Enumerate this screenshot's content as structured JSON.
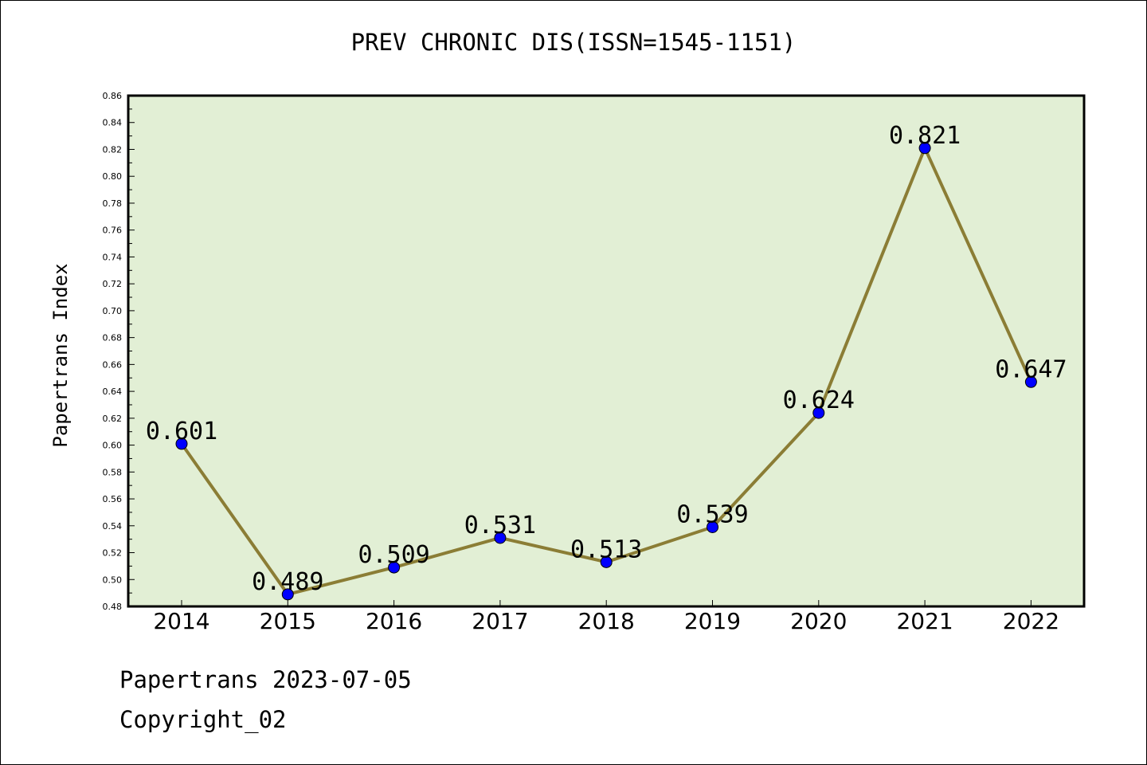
{
  "chart_data": {
    "type": "line",
    "title": "PREV CHRONIC DIS(ISSN=1545-1151)",
    "xlabel": "",
    "ylabel": "Papertrans Index",
    "categories": [
      "2014",
      "2015",
      "2016",
      "2017",
      "2018",
      "2019",
      "2020",
      "2021",
      "2022"
    ],
    "series": [
      {
        "values": [
          0.601,
          0.489,
          0.509,
          0.531,
          0.513,
          0.539,
          0.624,
          0.821,
          0.647
        ],
        "data_labels": [
          "0.601",
          "0.489",
          "0.509",
          "0.531",
          "0.513",
          "0.539",
          "0.624",
          "0.821",
          "0.647"
        ]
      }
    ],
    "ylim": [
      0.48,
      0.86
    ],
    "yticks": [
      "0.48",
      "0.50",
      "0.52",
      "0.54",
      "0.56",
      "0.58",
      "0.60",
      "0.62",
      "0.64",
      "0.66",
      "0.68",
      "0.70",
      "0.72",
      "0.74",
      "0.76",
      "0.78",
      "0.80",
      "0.82",
      "0.84",
      "0.86"
    ],
    "grid": false,
    "colors": {
      "plot_background": "#e2efd5",
      "line": "#8b7d35",
      "marker": "#0000ff"
    }
  },
  "footer": {
    "date_line": "Papertrans 2023-07-05",
    "copyright_line": "Copyright_02"
  }
}
